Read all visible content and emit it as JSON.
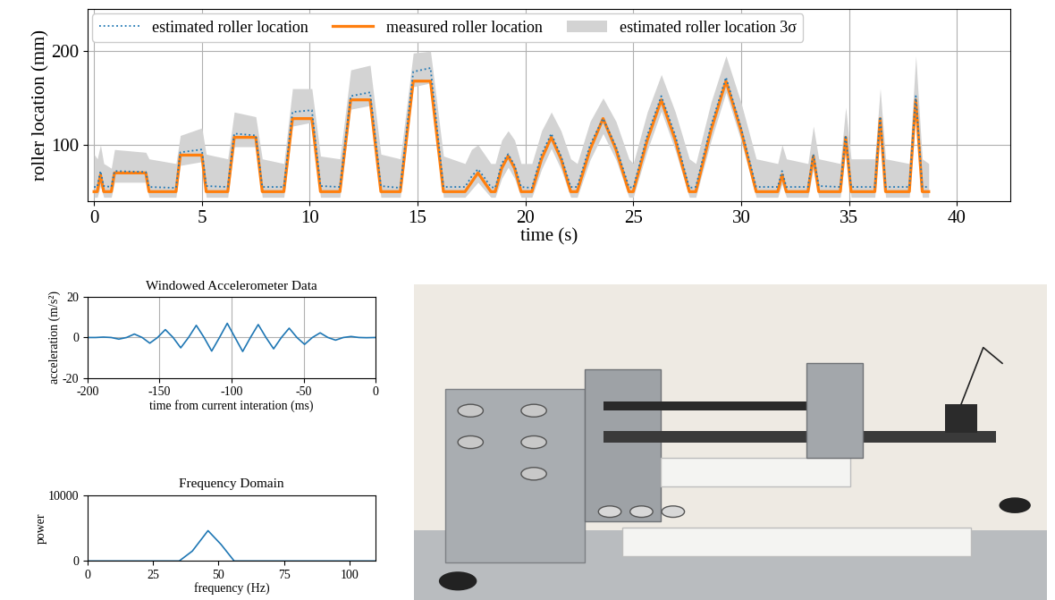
{
  "chart_data": [
    {
      "type": "line",
      "x_label": "time (s)",
      "y_label": "roller location (mm)",
      "x": [
        0.0,
        0.15,
        0.3,
        0.45,
        0.8,
        0.95,
        2.4,
        2.55,
        3.8,
        4.0,
        5.0,
        5.2,
        6.2,
        6.5,
        7.5,
        7.8,
        8.8,
        9.2,
        10.1,
        10.5,
        11.4,
        11.9,
        12.8,
        13.3,
        14.2,
        14.8,
        15.6,
        16.2,
        17.2,
        17.5,
        17.8,
        18.1,
        18.4,
        18.6,
        18.9,
        19.2,
        19.5,
        19.8,
        20.3,
        20.75,
        21.2,
        21.65,
        22.1,
        22.4,
        23.0,
        23.6,
        24.2,
        24.8,
        25.0,
        25.65,
        26.3,
        26.95,
        27.6,
        27.9,
        28.6,
        29.3,
        30.0,
        30.7,
        31.7,
        31.9,
        32.1,
        33.1,
        33.35,
        33.6,
        34.6,
        34.85,
        35.1,
        36.2,
        36.45,
        36.7,
        37.8,
        38.1,
        38.4,
        38.7
      ],
      "series": [
        {
          "name": "estimated roller location",
          "color": "#1f77b4",
          "line_style": "dotted",
          "values": [
            55,
            55,
            72,
            56,
            55,
            72,
            71,
            55,
            54,
            92,
            95,
            56,
            55,
            112,
            110,
            55,
            55,
            135,
            137,
            56,
            55,
            152,
            156,
            56,
            54,
            178,
            182,
            55,
            55,
            66,
            74,
            65,
            55,
            54,
            80,
            90,
            78,
            55,
            54,
            90,
            112,
            88,
            55,
            55,
            100,
            128,
            98,
            55,
            54,
            110,
            152,
            110,
            54,
            55,
            120,
            172,
            118,
            55,
            55,
            72,
            55,
            55,
            90,
            56,
            55,
            110,
            55,
            55,
            130,
            55,
            55,
            152,
            55,
            55
          ]
        },
        {
          "name": "measured roller location",
          "color": "#ff7f0e",
          "line_style": "solid",
          "values": [
            50,
            50,
            68,
            50,
            50,
            70,
            70,
            50,
            50,
            89,
            89,
            50,
            50,
            108,
            108,
            50,
            50,
            128,
            128,
            50,
            50,
            148,
            148,
            50,
            50,
            168,
            168,
            50,
            50,
            60,
            70,
            60,
            50,
            50,
            75,
            88,
            75,
            50,
            50,
            85,
            108,
            85,
            50,
            50,
            95,
            128,
            95,
            50,
            50,
            105,
            148,
            105,
            50,
            50,
            115,
            168,
            115,
            50,
            50,
            68,
            50,
            50,
            88,
            50,
            50,
            108,
            50,
            50,
            128,
            50,
            50,
            148,
            50,
            50
          ]
        },
        {
          "name": "estimated roller location 3σ",
          "type": "band",
          "color": "#d3d3d3",
          "lower": [
            44,
            44,
            56,
            44,
            44,
            60,
            60,
            44,
            44,
            78,
            82,
            44,
            44,
            98,
            98,
            44,
            44,
            120,
            124,
            44,
            44,
            138,
            142,
            44,
            44,
            162,
            166,
            44,
            44,
            52,
            60,
            52,
            44,
            44,
            64,
            76,
            64,
            44,
            44,
            74,
            96,
            74,
            44,
            44,
            84,
            112,
            84,
            44,
            44,
            94,
            136,
            94,
            44,
            44,
            104,
            156,
            104,
            44,
            44,
            58,
            44,
            44,
            74,
            44,
            44,
            94,
            44,
            44,
            114,
            44,
            44,
            136,
            44,
            44
          ],
          "upper": [
            90,
            85,
            100,
            80,
            75,
            95,
            92,
            85,
            80,
            110,
            118,
            90,
            85,
            135,
            130,
            85,
            80,
            160,
            160,
            88,
            85,
            180,
            185,
            90,
            85,
            198,
            200,
            88,
            80,
            95,
            100,
            90,
            80,
            80,
            105,
            115,
            105,
            80,
            80,
            115,
            135,
            115,
            85,
            80,
            125,
            150,
            125,
            85,
            80,
            135,
            175,
            135,
            85,
            80,
            145,
            195,
            145,
            85,
            80,
            100,
            85,
            80,
            120,
            85,
            80,
            140,
            85,
            85,
            160,
            85,
            80,
            195,
            85,
            80
          ]
        }
      ],
      "xlim": [
        -0.3,
        42.5
      ],
      "ylim": [
        40,
        245
      ],
      "xticks": [
        0,
        5,
        10,
        15,
        20,
        25,
        30,
        35,
        40
      ],
      "yticks": [
        100,
        200
      ],
      "grid": true,
      "legend": "upper left"
    },
    {
      "type": "line",
      "title": "Windowed Accelerometer Data",
      "x_label": "time from current interation (ms)",
      "y_label": "acceleration (m/s²)",
      "x": [
        -200,
        -194.4,
        -189,
        -183.6,
        -178.3,
        -172.9,
        -167.5,
        -162.1,
        -156.8,
        -151.4,
        -146,
        -140.6,
        -135.3,
        -129.9,
        -124.5,
        -119.1,
        -113.8,
        -108.4,
        -103,
        -97.6,
        -92.3,
        -86.9,
        -81.5,
        -76.1,
        -70.8,
        -65.4,
        -60,
        -54.6,
        -49.3,
        -43.9,
        -38.5,
        -33.1,
        -27.8,
        -22.4,
        -17,
        -11.6,
        -6.3,
        0
      ],
      "series": [
        {
          "color": "#1f77b4",
          "values": [
            0,
            0,
            0.2,
            0,
            -0.8,
            0,
            1.7,
            0,
            -2.8,
            0,
            3.9,
            0,
            -5.1,
            0,
            6.0,
            0,
            -6.7,
            0,
            7.0,
            0,
            -6.9,
            0,
            6.4,
            0,
            -5.6,
            0,
            4.6,
            0,
            -3.4,
            0,
            2.3,
            0,
            -1.3,
            0,
            0.5,
            0,
            -0.1,
            0
          ]
        }
      ],
      "xlim": [
        -200,
        0
      ],
      "ylim": [
        -20,
        20
      ],
      "xticks": [
        -200,
        -150,
        -100,
        -50,
        0
      ],
      "yticks": [
        -20,
        0,
        20
      ],
      "grid": true
    },
    {
      "type": "line",
      "title": "Frequency Domain",
      "x_label": "frequency (Hz)",
      "y_label": "power",
      "x": [
        0,
        35,
        40,
        46,
        51,
        56,
        110
      ],
      "series": [
        {
          "color": "#1f77b4",
          "values": [
            0,
            0,
            1500,
            4600,
            2500,
            0,
            0
          ]
        }
      ],
      "xlim": [
        0,
        110
      ],
      "ylim": [
        0,
        10000
      ],
      "xticks": [
        0,
        25,
        50,
        75,
        100
      ],
      "yticks": [
        0,
        10000
      ],
      "grid": false
    }
  ]
}
